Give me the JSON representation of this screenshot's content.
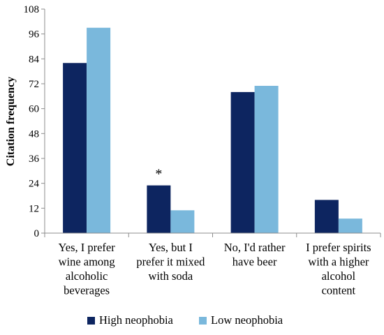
{
  "chart_data": {
    "type": "bar",
    "title": "",
    "xlabel": "",
    "ylabel": "Citation frequency",
    "ylim": [
      0,
      108
    ],
    "yticks": [
      0,
      12,
      24,
      36,
      48,
      60,
      72,
      84,
      96,
      108
    ],
    "grid": false,
    "legend_position": "bottom",
    "categories": [
      [
        "Yes, I prefer",
        "wine among",
        "alcoholic",
        "beverages"
      ],
      [
        "Yes, but I",
        "prefer it mixed",
        "with soda"
      ],
      [
        "No, I'd rather",
        "have beer"
      ],
      [
        "I prefer spirits",
        "with a higher",
        "alcohol",
        "content"
      ]
    ],
    "series": [
      {
        "name": "High neophobia",
        "color": "#0d2560",
        "values": [
          82,
          23,
          68,
          16
        ]
      },
      {
        "name": "Low neophobia",
        "color": "#7ab8dc",
        "values": [
          99,
          11,
          71,
          7
        ]
      }
    ],
    "annotations": [
      {
        "text": "*",
        "category_index": 1,
        "series_index": 0
      }
    ]
  }
}
